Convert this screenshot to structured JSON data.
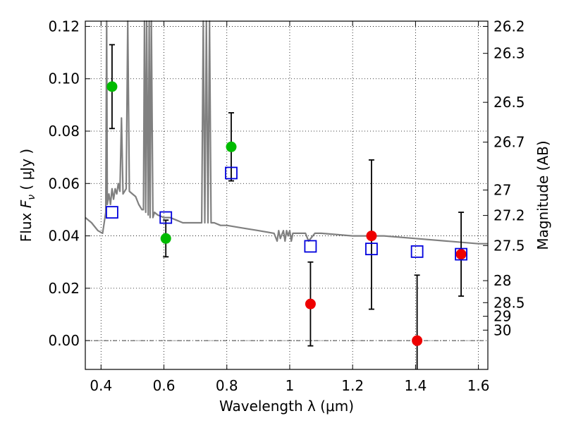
{
  "chart_data": {
    "type": "scatter",
    "xlabel": "Wavelength  λ (μm)",
    "ylabel": "Flux  F_ν  ( μJy )",
    "y2label": "Magnitude (AB)",
    "xlim": [
      0.35,
      1.63
    ],
    "ylim": [
      -0.011,
      0.122
    ],
    "grid": true,
    "x_ticks": [
      {
        "value": 0.4,
        "label": "0.4"
      },
      {
        "value": 0.6,
        "label": "0.6"
      },
      {
        "value": 0.8,
        "label": "0.8"
      },
      {
        "value": 1.0,
        "label": "1"
      },
      {
        "value": 1.2,
        "label": "1.2"
      },
      {
        "value": 1.4,
        "label": "1.4"
      },
      {
        "value": 1.6,
        "label": "1.6"
      }
    ],
    "y_ticks": [
      {
        "value": 0.0,
        "label": "0.00"
      },
      {
        "value": 0.02,
        "label": "0.02"
      },
      {
        "value": 0.04,
        "label": "0.04"
      },
      {
        "value": 0.06,
        "label": "0.06"
      },
      {
        "value": 0.08,
        "label": "0.08"
      },
      {
        "value": 0.1,
        "label": "0.10"
      },
      {
        "value": 0.12,
        "label": "0.12"
      }
    ],
    "y2_ticks": [
      {
        "flux": 0.12,
        "label": "26.2"
      },
      {
        "flux": 0.1097,
        "label": "26.3"
      },
      {
        "flux": 0.091,
        "label": "26.5"
      },
      {
        "flux": 0.0758,
        "label": "26.7"
      },
      {
        "flux": 0.0575,
        "label": "27"
      },
      {
        "flux": 0.0478,
        "label": "27.2"
      },
      {
        "flux": 0.0363,
        "label": "27.5"
      },
      {
        "flux": 0.0229,
        "label": "28"
      },
      {
        "flux": 0.0145,
        "label": "28.5"
      },
      {
        "flux": 0.0093,
        "label": "29"
      },
      {
        "flux": 0.004,
        "label": "30"
      }
    ],
    "series": [
      {
        "marker": "circle",
        "color": "#00bb00",
        "points": [
          {
            "x": 0.435,
            "y": 0.097,
            "err_lo": 0.081,
            "err_hi": 0.113
          },
          {
            "x": 0.606,
            "y": 0.039,
            "err_lo": 0.032,
            "err_hi": 0.046
          },
          {
            "x": 0.814,
            "y": 0.074,
            "err_lo": 0.061,
            "err_hi": 0.087
          }
        ]
      },
      {
        "marker": "circle",
        "color": "#ee0000",
        "points": [
          {
            "x": 1.066,
            "y": 0.014,
            "err_lo": -0.002,
            "err_hi": 0.03
          },
          {
            "x": 1.26,
            "y": 0.04,
            "err_lo": 0.012,
            "err_hi": 0.069
          },
          {
            "x": 1.405,
            "y": 0.0,
            "err_lo": -0.011,
            "err_hi": 0.025
          },
          {
            "x": 1.545,
            "y": 0.033,
            "err_lo": 0.017,
            "err_hi": 0.049
          }
        ]
      },
      {
        "marker": "open-square",
        "color": "#0000dd",
        "points": [
          {
            "x": 0.435,
            "y": 0.049
          },
          {
            "x": 0.606,
            "y": 0.047
          },
          {
            "x": 0.814,
            "y": 0.064
          },
          {
            "x": 1.066,
            "y": 0.036
          },
          {
            "x": 1.26,
            "y": 0.035
          },
          {
            "x": 1.405,
            "y": 0.034
          },
          {
            "x": 1.545,
            "y": 0.033
          }
        ]
      }
    ],
    "model_spectrum": {
      "color": "#808080",
      "points": [
        [
          0.35,
          0.047
        ],
        [
          0.37,
          0.045
        ],
        [
          0.39,
          0.042
        ],
        [
          0.405,
          0.041
        ],
        [
          0.41,
          0.045
        ],
        [
          0.415,
          0.049
        ],
        [
          0.418,
          0.122
        ],
        [
          0.42,
          0.052
        ],
        [
          0.425,
          0.056
        ],
        [
          0.43,
          0.052
        ],
        [
          0.435,
          0.058
        ],
        [
          0.44,
          0.054
        ],
        [
          0.445,
          0.058
        ],
        [
          0.45,
          0.056
        ],
        [
          0.455,
          0.06
        ],
        [
          0.46,
          0.057
        ],
        [
          0.465,
          0.085
        ],
        [
          0.47,
          0.056
        ],
        [
          0.48,
          0.058
        ],
        [
          0.485,
          0.122
        ],
        [
          0.49,
          0.057
        ],
        [
          0.5,
          0.056
        ],
        [
          0.51,
          0.055
        ],
        [
          0.52,
          0.052
        ],
        [
          0.53,
          0.05
        ],
        [
          0.535,
          0.05
        ],
        [
          0.538,
          0.122
        ],
        [
          0.542,
          0.049
        ],
        [
          0.545,
          0.122
        ],
        [
          0.55,
          0.048
        ],
        [
          0.553,
          0.122
        ],
        [
          0.556,
          0.047
        ],
        [
          0.56,
          0.122
        ],
        [
          0.565,
          0.047
        ],
        [
          0.57,
          0.049
        ],
        [
          0.58,
          0.048
        ],
        [
          0.6,
          0.047
        ],
        [
          0.62,
          0.047
        ],
        [
          0.64,
          0.046
        ],
        [
          0.66,
          0.045
        ],
        [
          0.68,
          0.045
        ],
        [
          0.7,
          0.045
        ],
        [
          0.72,
          0.045
        ],
        [
          0.725,
          0.122
        ],
        [
          0.73,
          0.045
        ],
        [
          0.735,
          0.122
        ],
        [
          0.74,
          0.045
        ],
        [
          0.745,
          0.122
        ],
        [
          0.75,
          0.045
        ],
        [
          0.76,
          0.045
        ],
        [
          0.78,
          0.044
        ],
        [
          0.8,
          0.044
        ],
        [
          0.85,
          0.043
        ],
        [
          0.9,
          0.042
        ],
        [
          0.95,
          0.041
        ],
        [
          0.96,
          0.038
        ],
        [
          0.965,
          0.042
        ],
        [
          0.97,
          0.039
        ],
        [
          0.98,
          0.042
        ],
        [
          0.985,
          0.038
        ],
        [
          0.99,
          0.042
        ],
        [
          0.995,
          0.04
        ],
        [
          1.0,
          0.042
        ],
        [
          1.005,
          0.038
        ],
        [
          1.01,
          0.041
        ],
        [
          1.02,
          0.041
        ],
        [
          1.05,
          0.041
        ],
        [
          1.06,
          0.038
        ],
        [
          1.08,
          0.041
        ],
        [
          1.1,
          0.041
        ],
        [
          1.2,
          0.04
        ],
        [
          1.3,
          0.04
        ],
        [
          1.4,
          0.039
        ],
        [
          1.5,
          0.038
        ],
        [
          1.6,
          0.037
        ],
        [
          1.63,
          0.037
        ]
      ]
    }
  }
}
